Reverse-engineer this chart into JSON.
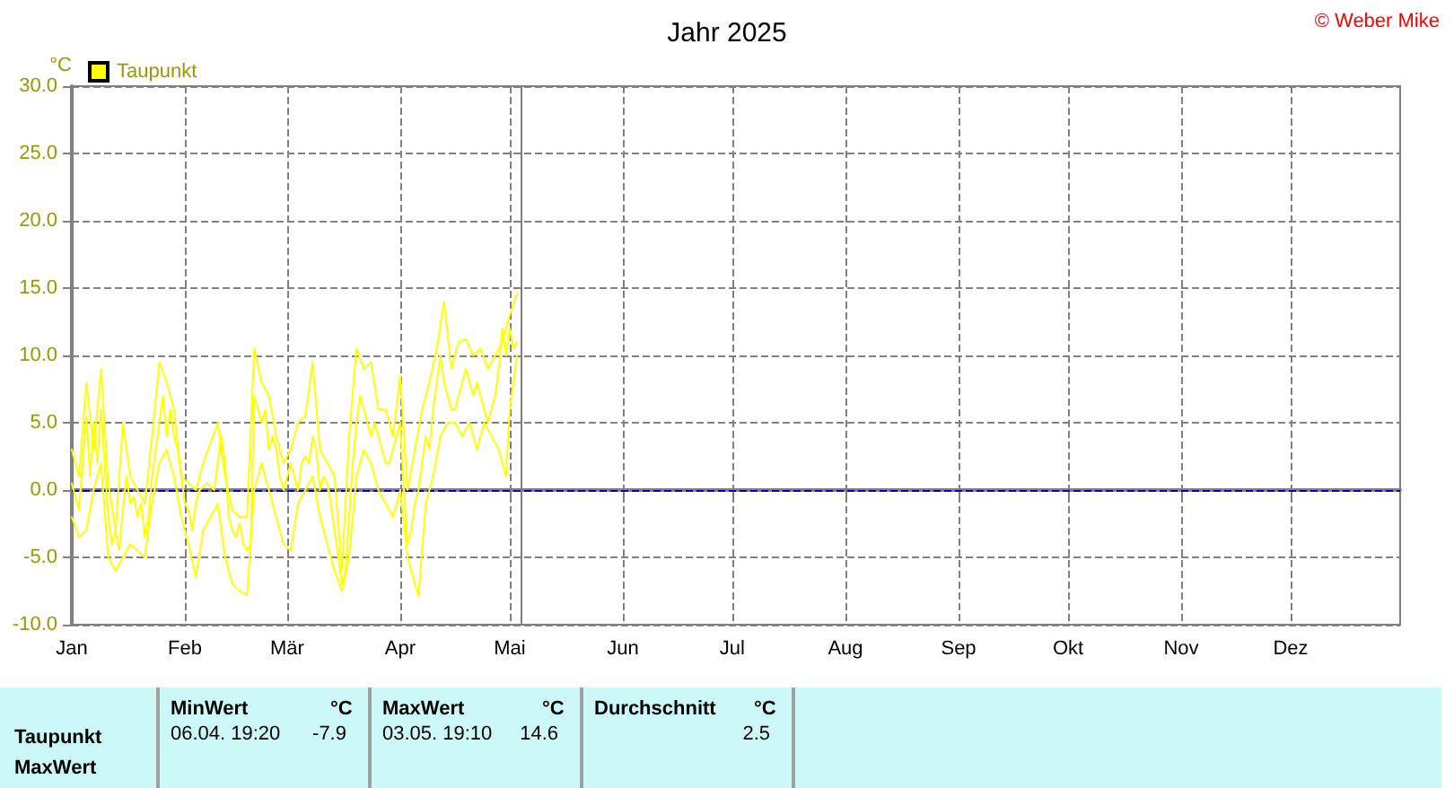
{
  "chart_data": {
    "type": "line",
    "title": "Jahr 2025",
    "ylabel": "°C",
    "legend": "top left",
    "grid": true,
    "marker": "none",
    "line_style": "solid",
    "xlim": [
      "2025-01-01",
      "2025-12-31"
    ],
    "xticks": [
      {
        "value": "2025-01-01",
        "label": "Jan"
      },
      {
        "value": "2025-02-01",
        "label": "Feb"
      },
      {
        "value": "2025-03-01",
        "label": "Mär"
      },
      {
        "value": "2025-04-01",
        "label": "Apr"
      },
      {
        "value": "2025-05-01",
        "label": "Mai"
      },
      {
        "value": "2025-06-01",
        "label": "Jun"
      },
      {
        "value": "2025-07-01",
        "label": "Jul"
      },
      {
        "value": "2025-08-01",
        "label": "Aug"
      },
      {
        "value": "2025-09-01",
        "label": "Sep"
      },
      {
        "value": "2025-10-01",
        "label": "Okt"
      },
      {
        "value": "2025-11-01",
        "label": "Nov"
      },
      {
        "value": "2025-12-01",
        "label": "Dez"
      }
    ],
    "ylim": [
      -10,
      30
    ],
    "yticks": [
      {
        "value": -10,
        "label": "-10.0"
      },
      {
        "value": -5,
        "label": "-5.0"
      },
      {
        "value": 0,
        "label": "0.0"
      },
      {
        "value": 5,
        "label": "5.0"
      },
      {
        "value": 10,
        "label": "10.0"
      },
      {
        "value": 15,
        "label": "15.0"
      },
      {
        "value": 20,
        "label": "20.0"
      },
      {
        "value": 25,
        "label": "25.0"
      },
      {
        "value": 30,
        "label": "30.0"
      }
    ],
    "ref_lines": [
      {
        "axis": "y",
        "value": 0,
        "label": null,
        "color": "#0000c0",
        "line_style": "dashed"
      },
      {
        "axis": "x",
        "value": "2025-05-04",
        "label": null,
        "color": "#808080",
        "line_style": "solid"
      }
    ],
    "annotations": [
      "© Weber Mike",
      "MinWert",
      "°C",
      "MaxWert",
      "°C",
      "Durchschnitt",
      "°C",
      "Taupunkt",
      "06.04.  19:20",
      "-7.9",
      "03.05.  19:10",
      "14.6",
      "2.5",
      "MaxWert"
    ],
    "series": [
      {
        "name": "Taupunkt",
        "color": "#ffff00",
        "x": [
          "2025-01-01",
          "2025-01-03",
          "2025-01-05",
          "2025-01-06",
          "2025-01-07",
          "2025-01-08",
          "2025-01-09",
          "2025-01-10",
          "2025-01-11",
          "2025-01-12",
          "2025-01-13",
          "2025-01-14",
          "2025-01-15",
          "2025-01-16",
          "2025-01-17",
          "2025-01-18",
          "2025-01-19",
          "2025-01-20",
          "2025-01-21",
          "2025-01-22",
          "2025-01-23",
          "2025-01-24",
          "2025-01-25",
          "2025-01-26",
          "2025-01-27",
          "2025-01-28",
          "2025-01-29",
          "2025-01-30",
          "2025-01-31",
          "2025-02-01",
          "2025-02-02",
          "2025-02-03",
          "2025-02-04",
          "2025-02-05",
          "2025-02-07",
          "2025-02-09",
          "2025-02-10",
          "2025-02-11",
          "2025-02-12",
          "2025-02-13",
          "2025-02-14",
          "2025-02-15",
          "2025-02-16",
          "2025-02-17",
          "2025-02-18",
          "2025-02-19",
          "2025-02-20",
          "2025-02-21",
          "2025-02-22",
          "2025-02-23",
          "2025-02-24",
          "2025-02-25",
          "2025-02-26",
          "2025-02-27",
          "2025-02-28",
          "2025-03-01",
          "2025-03-02",
          "2025-03-03",
          "2025-03-04",
          "2025-03-05",
          "2025-03-06",
          "2025-03-07",
          "2025-03-08",
          "2025-03-09",
          "2025-03-10",
          "2025-03-11",
          "2025-03-12",
          "2025-03-13",
          "2025-03-14",
          "2025-03-15",
          "2025-03-16",
          "2025-03-17",
          "2025-03-18",
          "2025-03-19",
          "2025-03-20",
          "2025-03-21",
          "2025-03-22",
          "2025-03-23",
          "2025-03-24",
          "2025-03-25",
          "2025-03-26",
          "2025-03-27",
          "2025-03-28",
          "2025-03-29",
          "2025-03-30",
          "2025-03-31",
          "2025-04-01",
          "2025-04-02",
          "2025-04-03",
          "2025-04-04",
          "2025-04-05",
          "2025-04-06",
          "2025-04-07",
          "2025-04-08",
          "2025-04-09",
          "2025-04-10",
          "2025-04-11",
          "2025-04-12",
          "2025-04-13",
          "2025-04-14",
          "2025-04-15",
          "2025-04-16",
          "2025-04-17",
          "2025-04-18",
          "2025-04-19",
          "2025-04-20",
          "2025-04-21",
          "2025-04-22",
          "2025-04-23",
          "2025-04-24",
          "2025-04-25",
          "2025-04-26",
          "2025-04-27",
          "2025-04-28",
          "2025-04-29",
          "2025-04-30",
          "2025-05-01",
          "2025-05-02",
          "2025-05-03"
        ],
        "values": [
          0.5,
          -1.5,
          5.5,
          1,
          5,
          2,
          6,
          2,
          -2,
          -4,
          -3,
          -4.5,
          -1.5,
          1,
          -1,
          -0.5,
          -2,
          -1,
          -3.5,
          -2,
          1,
          3,
          5,
          7,
          4,
          6,
          4,
          3,
          1,
          -1,
          -1.5,
          -3,
          -1,
          0,
          0.5,
          0,
          2,
          4,
          2,
          -2,
          -3,
          -3.5,
          -2.5,
          -4,
          -4.5,
          -4,
          7,
          6,
          5,
          6,
          3,
          4,
          3,
          1,
          0,
          1,
          2,
          1,
          0,
          2,
          2.5,
          2,
          4,
          3,
          0,
          1,
          0.5,
          -1,
          -3,
          -5,
          -7,
          -6,
          -2,
          2,
          5,
          7,
          6,
          5,
          4,
          5,
          4,
          3,
          2,
          2,
          3,
          4,
          5,
          0,
          -4,
          -3,
          -1,
          0,
          2,
          4,
          3,
          6,
          8,
          10,
          8,
          7,
          6,
          6,
          7,
          8,
          9,
          8,
          7,
          8,
          7,
          6,
          5,
          6,
          7,
          9,
          12,
          10,
          12,
          10.5,
          11
        ]
      },
      {
        "color": "#ffff00",
        "x": [
          "2025-01-01",
          "2025-01-03",
          "2025-01-05",
          "2025-01-07",
          "2025-01-09",
          "2025-01-11",
          "2025-01-13",
          "2025-01-15",
          "2025-01-17",
          "2025-01-19",
          "2025-01-21",
          "2025-01-23",
          "2025-01-25",
          "2025-01-27",
          "2025-01-29",
          "2025-01-31",
          "2025-02-02",
          "2025-02-04",
          "2025-02-06",
          "2025-02-08",
          "2025-02-10",
          "2025-02-12",
          "2025-02-14",
          "2025-02-16",
          "2025-02-18",
          "2025-02-20",
          "2025-02-22",
          "2025-02-24",
          "2025-02-26",
          "2025-02-28",
          "2025-03-02",
          "2025-03-04",
          "2025-03-06",
          "2025-03-08",
          "2025-03-10",
          "2025-03-12",
          "2025-03-14",
          "2025-03-16",
          "2025-03-18",
          "2025-03-20",
          "2025-03-22",
          "2025-03-24",
          "2025-03-26",
          "2025-03-28",
          "2025-03-30",
          "2025-04-01",
          "2025-04-03",
          "2025-04-05",
          "2025-04-07",
          "2025-04-09",
          "2025-04-11",
          "2025-04-13",
          "2025-04-15",
          "2025-04-17",
          "2025-04-19",
          "2025-04-21",
          "2025-04-23",
          "2025-04-25",
          "2025-04-27",
          "2025-04-29",
          "2025-05-01",
          "2025-05-03"
        ],
        "values": [
          3,
          1,
          8,
          3,
          9,
          0.5,
          -3,
          5,
          1,
          0,
          -1,
          4,
          9.5,
          8,
          6,
          1,
          0.5,
          0,
          2,
          3.5,
          5,
          1,
          -1.5,
          -2,
          -2,
          10.5,
          8,
          7,
          4,
          2,
          3,
          5,
          5.5,
          9.5,
          3,
          2,
          1,
          -6,
          4,
          10.5,
          9,
          9.5,
          6,
          6,
          4,
          8.5,
          0,
          3,
          6,
          8,
          10.5,
          14,
          9,
          11,
          11.2,
          10,
          10.5,
          9,
          10,
          11,
          13,
          14.6
        ]
      },
      {
        "color": "#ffff00",
        "x": [
          "2025-01-01",
          "2025-01-03",
          "2025-01-05",
          "2025-01-07",
          "2025-01-09",
          "2025-01-11",
          "2025-01-13",
          "2025-01-15",
          "2025-01-17",
          "2025-01-19",
          "2025-01-21",
          "2025-01-23",
          "2025-01-25",
          "2025-01-27",
          "2025-01-29",
          "2025-01-31",
          "2025-02-02",
          "2025-02-04",
          "2025-02-06",
          "2025-02-08",
          "2025-02-10",
          "2025-02-12",
          "2025-02-14",
          "2025-02-16",
          "2025-02-18",
          "2025-02-20",
          "2025-02-22",
          "2025-02-24",
          "2025-02-26",
          "2025-02-28",
          "2025-03-02",
          "2025-03-04",
          "2025-03-06",
          "2025-03-08",
          "2025-03-10",
          "2025-03-12",
          "2025-03-14",
          "2025-03-16",
          "2025-03-18",
          "2025-03-20",
          "2025-03-22",
          "2025-03-24",
          "2025-03-26",
          "2025-03-28",
          "2025-03-30",
          "2025-04-01",
          "2025-04-03",
          "2025-04-06",
          "2025-04-08",
          "2025-04-10",
          "2025-04-12",
          "2025-04-14",
          "2025-04-16",
          "2025-04-18",
          "2025-04-20",
          "2025-04-22",
          "2025-04-24",
          "2025-04-26",
          "2025-04-28",
          "2025-04-30",
          "2025-05-01",
          "2025-05-03"
        ],
        "values": [
          -2,
          -3.5,
          -3,
          0,
          2,
          -5,
          -6,
          -5,
          -4,
          -4.5,
          -5,
          -1,
          2,
          3,
          1,
          -2,
          -4,
          -6.5,
          -3,
          -2,
          -1,
          -5,
          -7,
          -7.5,
          -7.8,
          0,
          2,
          0,
          -2,
          -4,
          -4.5,
          -1,
          0,
          1,
          -2,
          -4,
          -6,
          -7.5,
          -5,
          1,
          3,
          2,
          0,
          -1,
          -2,
          0,
          -5,
          -7.9,
          -1,
          1,
          4,
          5,
          5,
          4,
          5,
          3,
          5,
          4,
          3,
          1,
          6,
          10
        ]
      }
    ]
  }
}
